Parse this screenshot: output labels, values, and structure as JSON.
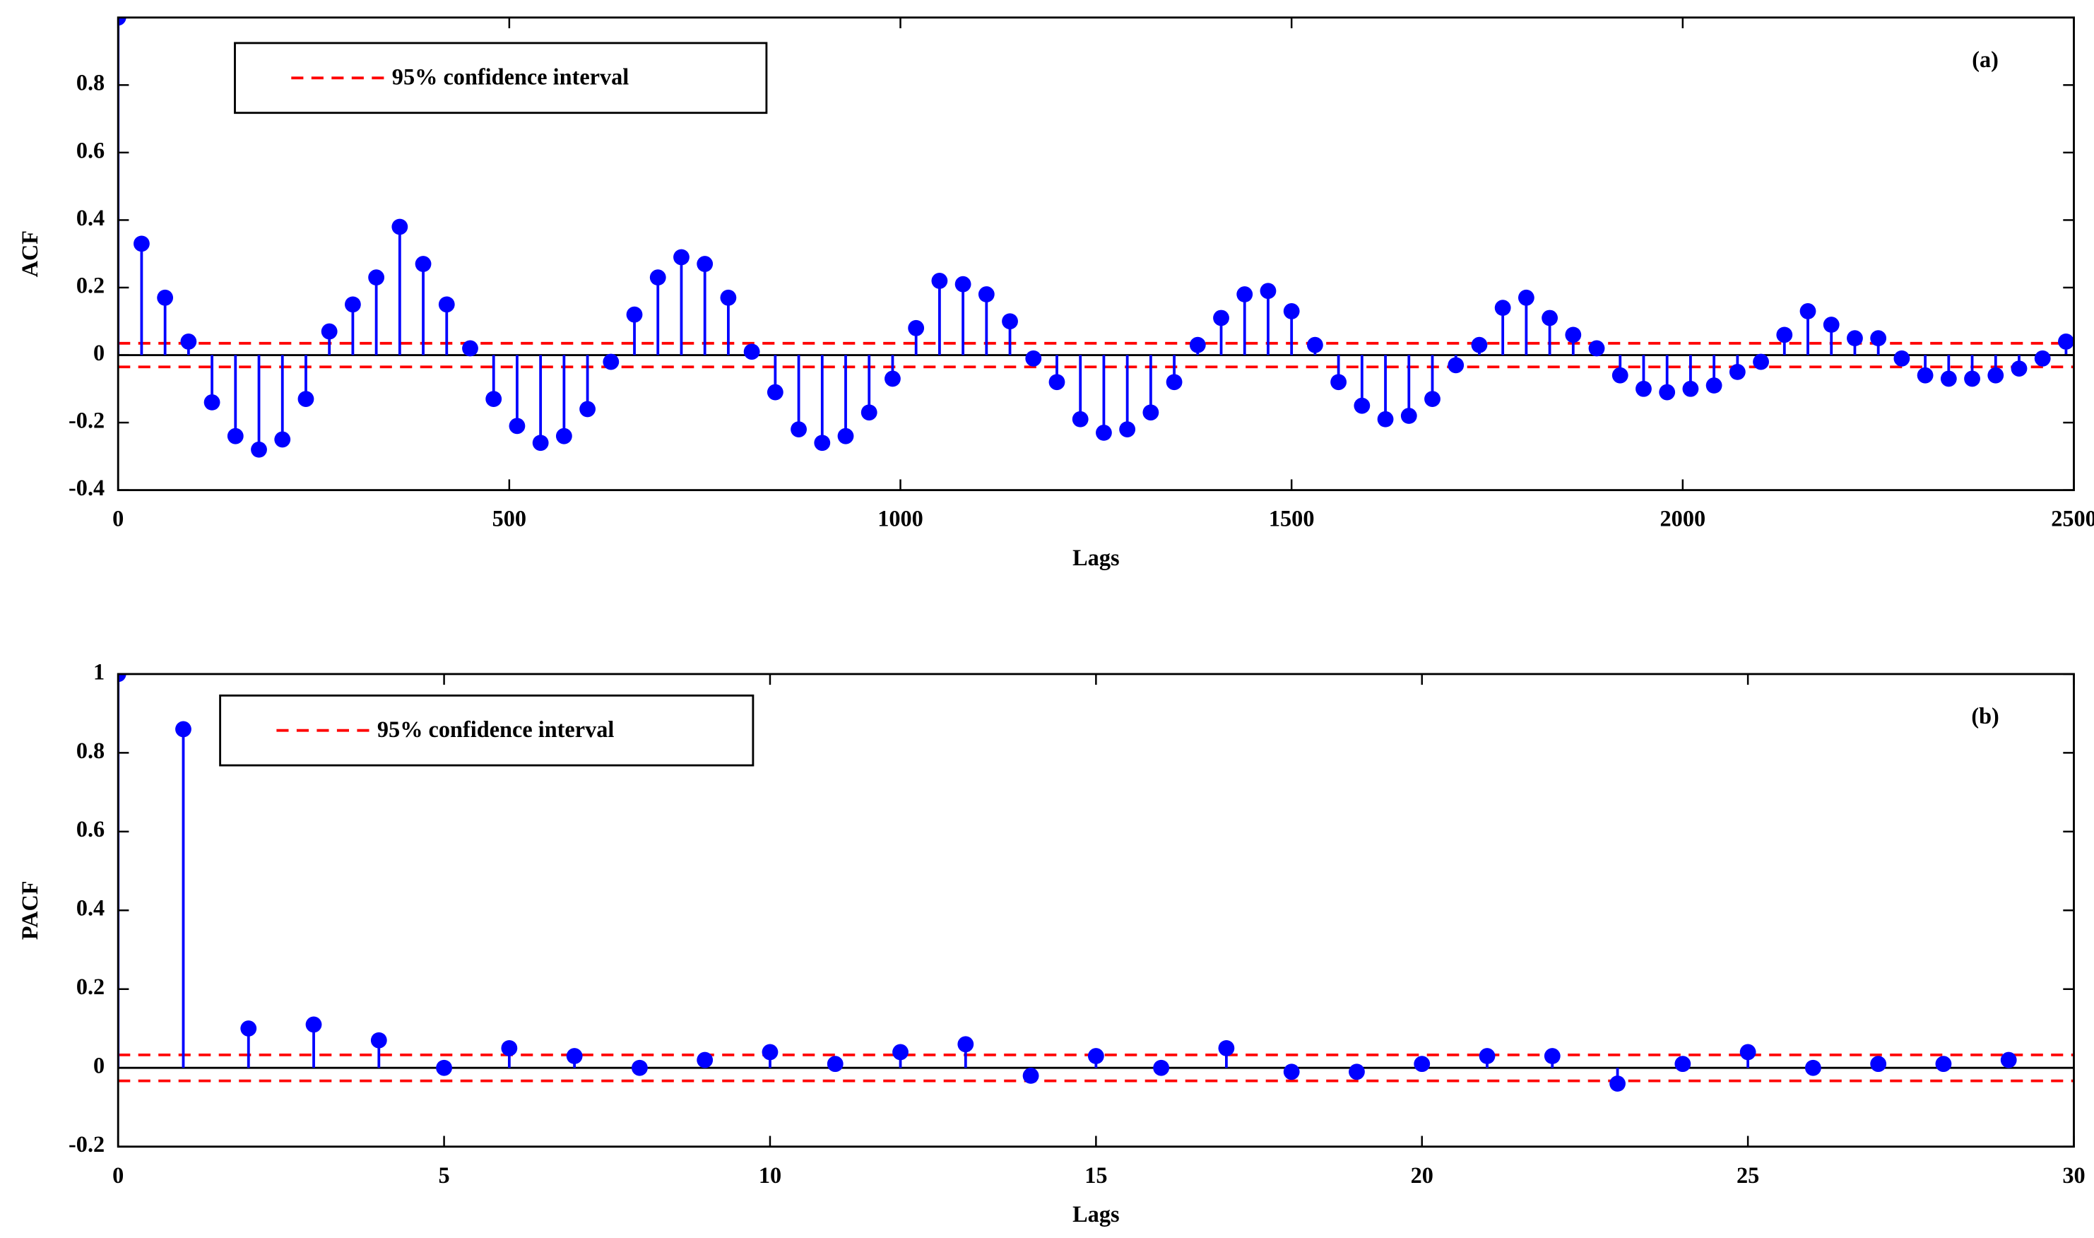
{
  "chart_data": [
    {
      "type": "stem",
      "label": "(a)",
      "xlabel": "Lags",
      "ylabel": "ACF",
      "x": [
        0,
        30,
        60,
        90,
        120,
        150,
        180,
        210,
        240,
        270,
        300,
        330,
        360,
        390,
        420,
        450,
        480,
        510,
        540,
        570,
        600,
        630,
        660,
        690,
        720,
        750,
        780,
        810,
        840,
        870,
        900,
        930,
        960,
        990,
        1020,
        1050,
        1080,
        1110,
        1140,
        1170,
        1200,
        1230,
        1260,
        1290,
        1320,
        1350,
        1380,
        1410,
        1440,
        1470,
        1500,
        1530,
        1560,
        1590,
        1620,
        1650,
        1680,
        1710,
        1740,
        1770,
        1800,
        1830,
        1860,
        1890,
        1920,
        1950,
        1980,
        2010,
        2040,
        2070,
        2100,
        2130,
        2160,
        2190,
        2220,
        2250,
        2280,
        2310,
        2340,
        2370,
        2400,
        2430,
        2460,
        2490
      ],
      "values": [
        1,
        0.33,
        0.17,
        0.04,
        -0.14,
        -0.24,
        -0.28,
        -0.25,
        -0.13,
        0.07,
        0.15,
        0.23,
        0.38,
        0.27,
        0.15,
        0.02,
        -0.13,
        -0.21,
        -0.26,
        -0.24,
        -0.16,
        -0.02,
        0.12,
        0.23,
        0.29,
        0.27,
        0.17,
        0.01,
        -0.11,
        -0.22,
        -0.26,
        -0.24,
        -0.17,
        -0.07,
        0.08,
        0.22,
        0.21,
        0.18,
        0.1,
        -0.01,
        -0.08,
        -0.19,
        -0.23,
        -0.22,
        -0.17,
        -0.08,
        0.03,
        0.11,
        0.18,
        0.19,
        0.13,
        0.03,
        -0.08,
        -0.15,
        -0.19,
        -0.18,
        -0.13,
        -0.03,
        0.03,
        0.14,
        0.17,
        0.11,
        0.06,
        0.02,
        -0.06,
        -0.1,
        -0.11,
        -0.1,
        -0.09,
        -0.05,
        -0.02,
        0.06,
        0.13,
        0.09,
        0.05,
        0.05,
        -0.01,
        -0.06,
        -0.07,
        -0.07,
        -0.06,
        -0.04,
        -0.01,
        0.04
      ],
      "color": "#0000ff",
      "confidence": {
        "name": "95% confidence interval",
        "upper": 0.035,
        "lower": -0.035,
        "color": "#ff0000"
      },
      "xlim": [
        0,
        2500
      ],
      "xticks": [
        0,
        500,
        1000,
        1500,
        2000,
        2500
      ],
      "ylim": [
        -0.4,
        1
      ],
      "yticks": [
        -0.4,
        -0.2,
        0,
        0.2,
        0.4,
        0.6,
        0.8
      ]
    },
    {
      "type": "stem",
      "label": "(b)",
      "xlabel": "Lags",
      "ylabel": "PACF",
      "x": [
        0,
        1,
        2,
        3,
        4,
        5,
        6,
        7,
        8,
        9,
        10,
        11,
        12,
        13,
        14,
        15,
        16,
        17,
        18,
        19,
        20,
        21,
        22,
        23,
        24,
        25,
        26,
        27,
        28,
        29
      ],
      "values": [
        1,
        0.86,
        0.1,
        0.11,
        0.07,
        0,
        0.05,
        0.03,
        0,
        0.02,
        0.04,
        0.01,
        0.04,
        0.06,
        -0.02,
        0.03,
        0,
        0.05,
        -0.01,
        -0.01,
        0.01,
        0.03,
        0.03,
        -0.04,
        0.01,
        0.04,
        0,
        0.01,
        0.01,
        0.02
      ],
      "color": "#0000ff",
      "confidence": {
        "name": "95% confidence interval",
        "upper": 0.033,
        "lower": -0.033,
        "color": "#ff0000"
      },
      "xlim": [
        0,
        30
      ],
      "xticks": [
        0,
        5,
        10,
        15,
        20,
        25,
        30
      ],
      "ylim": [
        -0.2,
        1
      ],
      "yticks": [
        -0.2,
        0,
        0.2,
        0.4,
        0.6,
        0.8,
        1
      ]
    }
  ]
}
